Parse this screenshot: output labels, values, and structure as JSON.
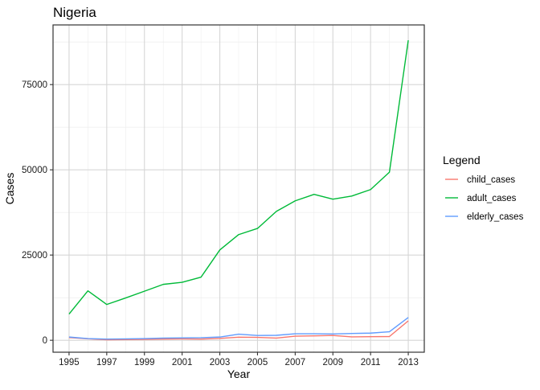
{
  "chart_data": {
    "type": "line",
    "title": "Nigeria",
    "xlabel": "Year",
    "ylabel": "Cases",
    "xlim": [
      1994.15,
      2013.85
    ],
    "ylim": [
      -3500,
      92500
    ],
    "x_ticks": [
      1995,
      1997,
      1999,
      2001,
      2003,
      2005,
      2007,
      2009,
      2011,
      2013
    ],
    "x_tick_labels": [
      "1995",
      "1997",
      "1999",
      "2001",
      "2003",
      "2005",
      "2007",
      "2009",
      "2011",
      "2013"
    ],
    "y_ticks": [
      0,
      25000,
      50000,
      75000
    ],
    "y_tick_labels": [
      "0",
      "25000",
      "50000",
      "75000"
    ],
    "grid": true,
    "legend": {
      "title": "Legend",
      "position": "right"
    },
    "x": [
      1995,
      1996,
      1997,
      1998,
      1999,
      2000,
      2001,
      2002,
      2003,
      2004,
      2005,
      2006,
      2007,
      2008,
      2009,
      2010,
      2011,
      2012,
      2013
    ],
    "series": [
      {
        "name": "child_cases",
        "color": "#F8766D",
        "values": [
          800,
          450,
          150,
          200,
          250,
          350,
          400,
          350,
          550,
          900,
          850,
          650,
          1200,
          1300,
          1400,
          1000,
          1050,
          1100,
          5700
        ]
      },
      {
        "name": "adult_cases",
        "color": "#00BA38",
        "values": [
          7700,
          14500,
          10500,
          12400,
          14400,
          16400,
          17000,
          18500,
          26500,
          31000,
          32800,
          37800,
          40900,
          42800,
          41400,
          42300,
          44200,
          49300,
          88000
        ]
      },
      {
        "name": "elderly_cases",
        "color": "#619CFF",
        "values": [
          950,
          500,
          350,
          400,
          500,
          650,
          700,
          750,
          950,
          1800,
          1400,
          1450,
          1900,
          1900,
          1850,
          2000,
          2100,
          2500,
          6700
        ]
      }
    ]
  }
}
